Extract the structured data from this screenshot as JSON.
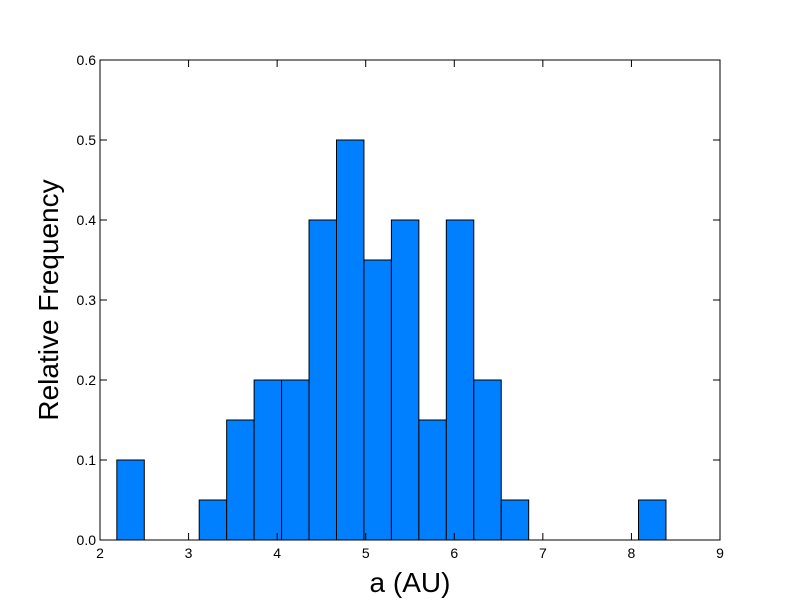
{
  "chart_data": {
    "type": "bar",
    "title": "",
    "xlabel": "a (AU)",
    "ylabel": "Relative Frequency",
    "xlim": [
      2,
      9
    ],
    "ylim": [
      0,
      0.6
    ],
    "xticks": [
      "2",
      "3",
      "4",
      "5",
      "6",
      "7",
      "8",
      "9"
    ],
    "yticks": [
      "0.0",
      "0.1",
      "0.2",
      "0.3",
      "0.4",
      "0.5",
      "0.6"
    ],
    "grid": false,
    "bar_color": "#0080ff",
    "edge_color": "#000000",
    "bins": [
      {
        "x0": 2.19,
        "x1": 2.5,
        "value": 0.1
      },
      {
        "x0": 2.5,
        "x1": 2.81,
        "value": 0.0
      },
      {
        "x0": 2.81,
        "x1": 3.12,
        "value": 0.0
      },
      {
        "x0": 3.12,
        "x1": 3.43,
        "value": 0.05
      },
      {
        "x0": 3.43,
        "x1": 3.74,
        "value": 0.15
      },
      {
        "x0": 3.74,
        "x1": 4.05,
        "value": 0.2
      },
      {
        "x0": 4.05,
        "x1": 4.36,
        "value": 0.2
      },
      {
        "x0": 4.36,
        "x1": 4.67,
        "value": 0.4
      },
      {
        "x0": 4.67,
        "x1": 4.98,
        "value": 0.5
      },
      {
        "x0": 4.98,
        "x1": 5.29,
        "value": 0.35
      },
      {
        "x0": 5.29,
        "x1": 5.6,
        "value": 0.4
      },
      {
        "x0": 5.6,
        "x1": 5.91,
        "value": 0.15
      },
      {
        "x0": 5.91,
        "x1": 6.22,
        "value": 0.4
      },
      {
        "x0": 6.22,
        "x1": 6.53,
        "value": 0.2
      },
      {
        "x0": 6.53,
        "x1": 6.84,
        "value": 0.05
      },
      {
        "x0": 6.84,
        "x1": 7.15,
        "value": 0.0
      },
      {
        "x0": 7.15,
        "x1": 7.46,
        "value": 0.0
      },
      {
        "x0": 7.46,
        "x1": 7.77,
        "value": 0.0
      },
      {
        "x0": 7.77,
        "x1": 8.08,
        "value": 0.0
      },
      {
        "x0": 8.08,
        "x1": 8.39,
        "value": 0.05
      }
    ]
  }
}
